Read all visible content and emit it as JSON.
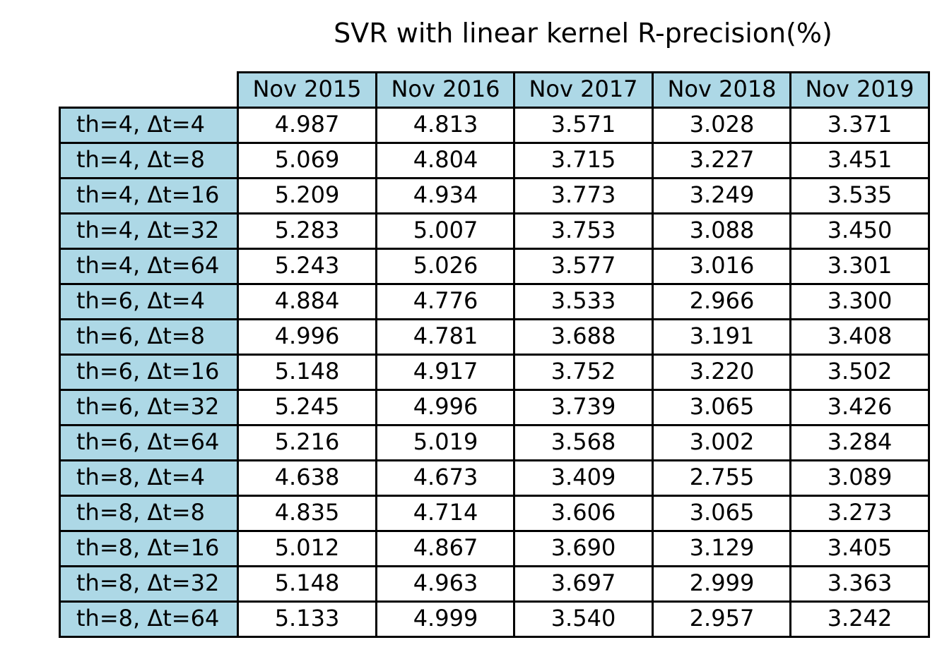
{
  "chart_data": {
    "type": "table",
    "title": "SVR with linear kernel R-precision(%)",
    "header_color": "#add8e6",
    "columns": [
      "Nov 2015",
      "Nov 2016",
      "Nov 2017",
      "Nov 2018",
      "Nov 2019"
    ],
    "rows": [
      {
        "label": "th=4, Δt=4",
        "values": [
          "4.987",
          "4.813",
          "3.571",
          "3.028",
          "3.371"
        ]
      },
      {
        "label": "th=4, Δt=8",
        "values": [
          "5.069",
          "4.804",
          "3.715",
          "3.227",
          "3.451"
        ]
      },
      {
        "label": "th=4, Δt=16",
        "values": [
          "5.209",
          "4.934",
          "3.773",
          "3.249",
          "3.535"
        ]
      },
      {
        "label": "th=4, Δt=32",
        "values": [
          "5.283",
          "5.007",
          "3.753",
          "3.088",
          "3.450"
        ]
      },
      {
        "label": "th=4, Δt=64",
        "values": [
          "5.243",
          "5.026",
          "3.577",
          "3.016",
          "3.301"
        ]
      },
      {
        "label": "th=6, Δt=4",
        "values": [
          "4.884",
          "4.776",
          "3.533",
          "2.966",
          "3.300"
        ]
      },
      {
        "label": "th=6, Δt=8",
        "values": [
          "4.996",
          "4.781",
          "3.688",
          "3.191",
          "3.408"
        ]
      },
      {
        "label": "th=6, Δt=16",
        "values": [
          "5.148",
          "4.917",
          "3.752",
          "3.220",
          "3.502"
        ]
      },
      {
        "label": "th=6, Δt=32",
        "values": [
          "5.245",
          "4.996",
          "3.739",
          "3.065",
          "3.426"
        ]
      },
      {
        "label": "th=6, Δt=64",
        "values": [
          "5.216",
          "5.019",
          "3.568",
          "3.002",
          "3.284"
        ]
      },
      {
        "label": "th=8, Δt=4",
        "values": [
          "4.638",
          "4.673",
          "3.409",
          "2.755",
          "3.089"
        ]
      },
      {
        "label": "th=8, Δt=8",
        "values": [
          "4.835",
          "4.714",
          "3.606",
          "3.065",
          "3.273"
        ]
      },
      {
        "label": "th=8, Δt=16",
        "values": [
          "5.012",
          "4.867",
          "3.690",
          "3.129",
          "3.405"
        ]
      },
      {
        "label": "th=8, Δt=32",
        "values": [
          "5.148",
          "4.963",
          "3.697",
          "2.999",
          "3.363"
        ]
      },
      {
        "label": "th=8, Δt=64",
        "values": [
          "5.133",
          "4.999",
          "3.540",
          "2.957",
          "3.242"
        ]
      }
    ]
  }
}
